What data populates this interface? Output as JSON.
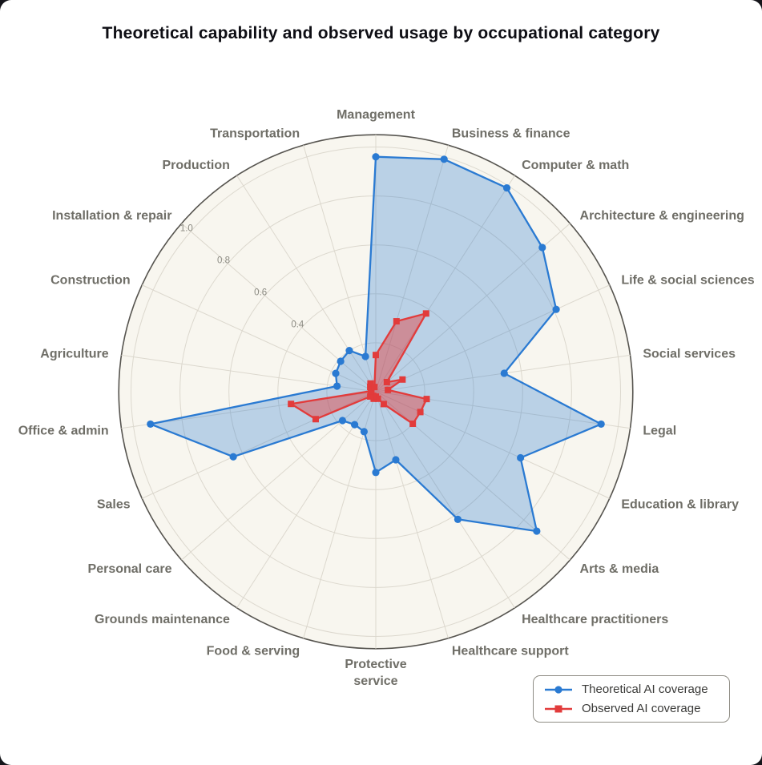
{
  "title": "Theoretical capability and observed usage by occupational category",
  "chart_data": {
    "type": "radar",
    "title": "Theoretical capability and observed usage by occupational category",
    "categories": [
      "Management",
      "Business & finance",
      "Computer & math",
      "Architecture & engineering",
      "Life & social sciences",
      "Social services",
      "Legal",
      "Education & library",
      "Arts & media",
      "Healthcare practitioners",
      "Healthcare support",
      "Protective\nservice",
      "Food & serving",
      "Grounds maintenance",
      "Personal care",
      "Sales",
      "Office & admin",
      "Agriculture",
      "Construction",
      "Installation & repair",
      "Production",
      "Transportation"
    ],
    "series": [
      {
        "name": "Theoretical AI coverage",
        "color": "#2a7ad2",
        "marker": "circle",
        "fill_opacity": 0.3,
        "values": [
          0.96,
          0.99,
          0.99,
          0.9,
          0.81,
          0.53,
          0.93,
          0.65,
          0.87,
          0.62,
          0.29,
          0.33,
          0.17,
          0.16,
          0.18,
          0.64,
          0.93,
          0.16,
          0.18,
          0.19,
          0.2,
          0.15
        ]
      },
      {
        "name": "Observed AI coverage",
        "color": "#e23b3b",
        "marker": "square",
        "fill_opacity": 0.45,
        "values": [
          0.15,
          0.3,
          0.38,
          0.06,
          0.12,
          0.05,
          0.21,
          0.2,
          0.2,
          0.06,
          0.03,
          0.02,
          0.03,
          0.02,
          0.03,
          0.27,
          0.35,
          0.02,
          0.02,
          0.03,
          0.04,
          0.02
        ]
      }
    ],
    "r_grid": [
      0.2,
      0.4,
      0.6,
      0.8,
      1.0
    ],
    "r_tick_values": [
      0.4,
      0.6,
      0.8,
      1.0
    ],
    "r_tick_labels": [
      "0.4",
      "0.6",
      "0.8",
      "1.0"
    ],
    "r_max": 1.05,
    "tick_angle_deg": 139.09,
    "grid_on": true,
    "legend_position": "lower right",
    "styles": {
      "bg": "#f8f6ef",
      "grid": "#dcd8ce",
      "spine": "#56544f",
      "label_color": "#6f6e67",
      "tick_color": "#8b8a82"
    }
  }
}
